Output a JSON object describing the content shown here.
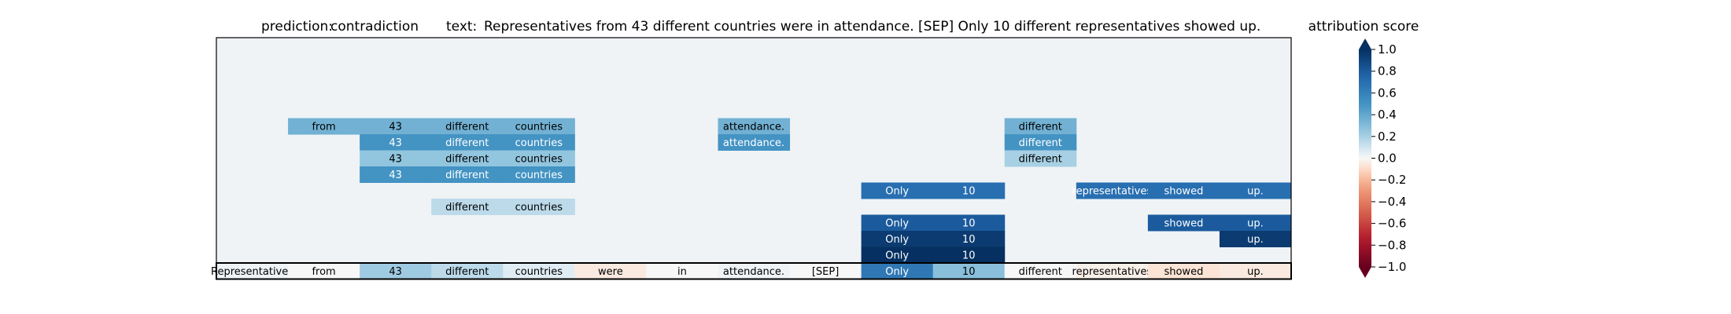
{
  "chart_data": {
    "type": "heatmap",
    "prediction_label": "prediction:",
    "prediction_value": "contradiction",
    "text_label": "text:",
    "text_value": "Representatives from 43 different countries were in attendance. [SEP] Only 10 different representatives showed up.",
    "colorbar_title": "attribution score",
    "colorbar_ticks": [
      "1.0",
      "0.8",
      "0.6",
      "0.4",
      "0.2",
      "0.0",
      "−0.2",
      "−0.4",
      "−0.6",
      "−0.8",
      "−1.0"
    ],
    "colorbar_range": [
      -1,
      1
    ],
    "tokens": [
      "Representatives",
      "from",
      "43",
      "different",
      "countries",
      "were",
      "in",
      "attendance.",
      "[SEP]",
      "Only",
      "10",
      "different",
      "representatives",
      "showed",
      "up."
    ],
    "background_value": 0.02,
    "rows": [
      {
        "values": [
          null,
          null,
          null,
          null,
          null,
          null,
          null,
          null,
          null,
          null,
          null,
          null,
          null,
          null,
          null
        ]
      },
      {
        "values": [
          null,
          null,
          null,
          null,
          null,
          null,
          null,
          null,
          null,
          null,
          null,
          null,
          null,
          null,
          null
        ]
      },
      {
        "values": [
          null,
          null,
          null,
          null,
          null,
          null,
          null,
          null,
          null,
          null,
          null,
          null,
          null,
          null,
          null
        ]
      },
      {
        "values": [
          null,
          null,
          null,
          null,
          null,
          null,
          null,
          null,
          null,
          null,
          null,
          null,
          null,
          null,
          null
        ]
      },
      {
        "values": [
          null,
          null,
          null,
          null,
          null,
          null,
          null,
          null,
          null,
          null,
          null,
          null,
          null,
          null,
          null
        ]
      },
      {
        "values": [
          null,
          0.35,
          0.35,
          0.35,
          0.35,
          null,
          null,
          0.35,
          null,
          null,
          null,
          0.35,
          null,
          null,
          null
        ]
      },
      {
        "values": [
          null,
          null,
          0.5,
          0.5,
          0.5,
          null,
          null,
          0.5,
          null,
          null,
          null,
          0.5,
          null,
          null,
          null
        ]
      },
      {
        "values": [
          null,
          null,
          0.25,
          0.25,
          0.25,
          null,
          null,
          null,
          null,
          null,
          null,
          0.2,
          null,
          null,
          null
        ]
      },
      {
        "values": [
          null,
          null,
          0.5,
          0.5,
          0.5,
          null,
          null,
          null,
          null,
          null,
          null,
          null,
          null,
          null,
          null
        ]
      },
      {
        "values": [
          null,
          null,
          null,
          null,
          null,
          null,
          null,
          null,
          null,
          0.7,
          0.7,
          null,
          0.7,
          0.7,
          0.7
        ]
      },
      {
        "values": [
          null,
          null,
          null,
          0.15,
          0.15,
          null,
          null,
          null,
          null,
          null,
          null,
          null,
          null,
          null,
          null
        ]
      },
      {
        "values": [
          null,
          null,
          null,
          null,
          null,
          null,
          null,
          null,
          null,
          0.8,
          0.8,
          null,
          null,
          0.8,
          0.8
        ]
      },
      {
        "values": [
          null,
          null,
          null,
          null,
          null,
          null,
          null,
          null,
          null,
          0.95,
          0.95,
          null,
          null,
          null,
          0.95
        ]
      },
      {
        "values": [
          null,
          null,
          null,
          null,
          null,
          null,
          null,
          null,
          null,
          1.0,
          1.0,
          null,
          null,
          null,
          null
        ]
      }
    ],
    "summary_values": [
      0.02,
      0.0,
      0.22,
      0.15,
      0.06,
      -0.05,
      0.0,
      0.02,
      0.0,
      0.65,
      0.28,
      0.0,
      -0.03,
      -0.07,
      -0.05
    ]
  }
}
